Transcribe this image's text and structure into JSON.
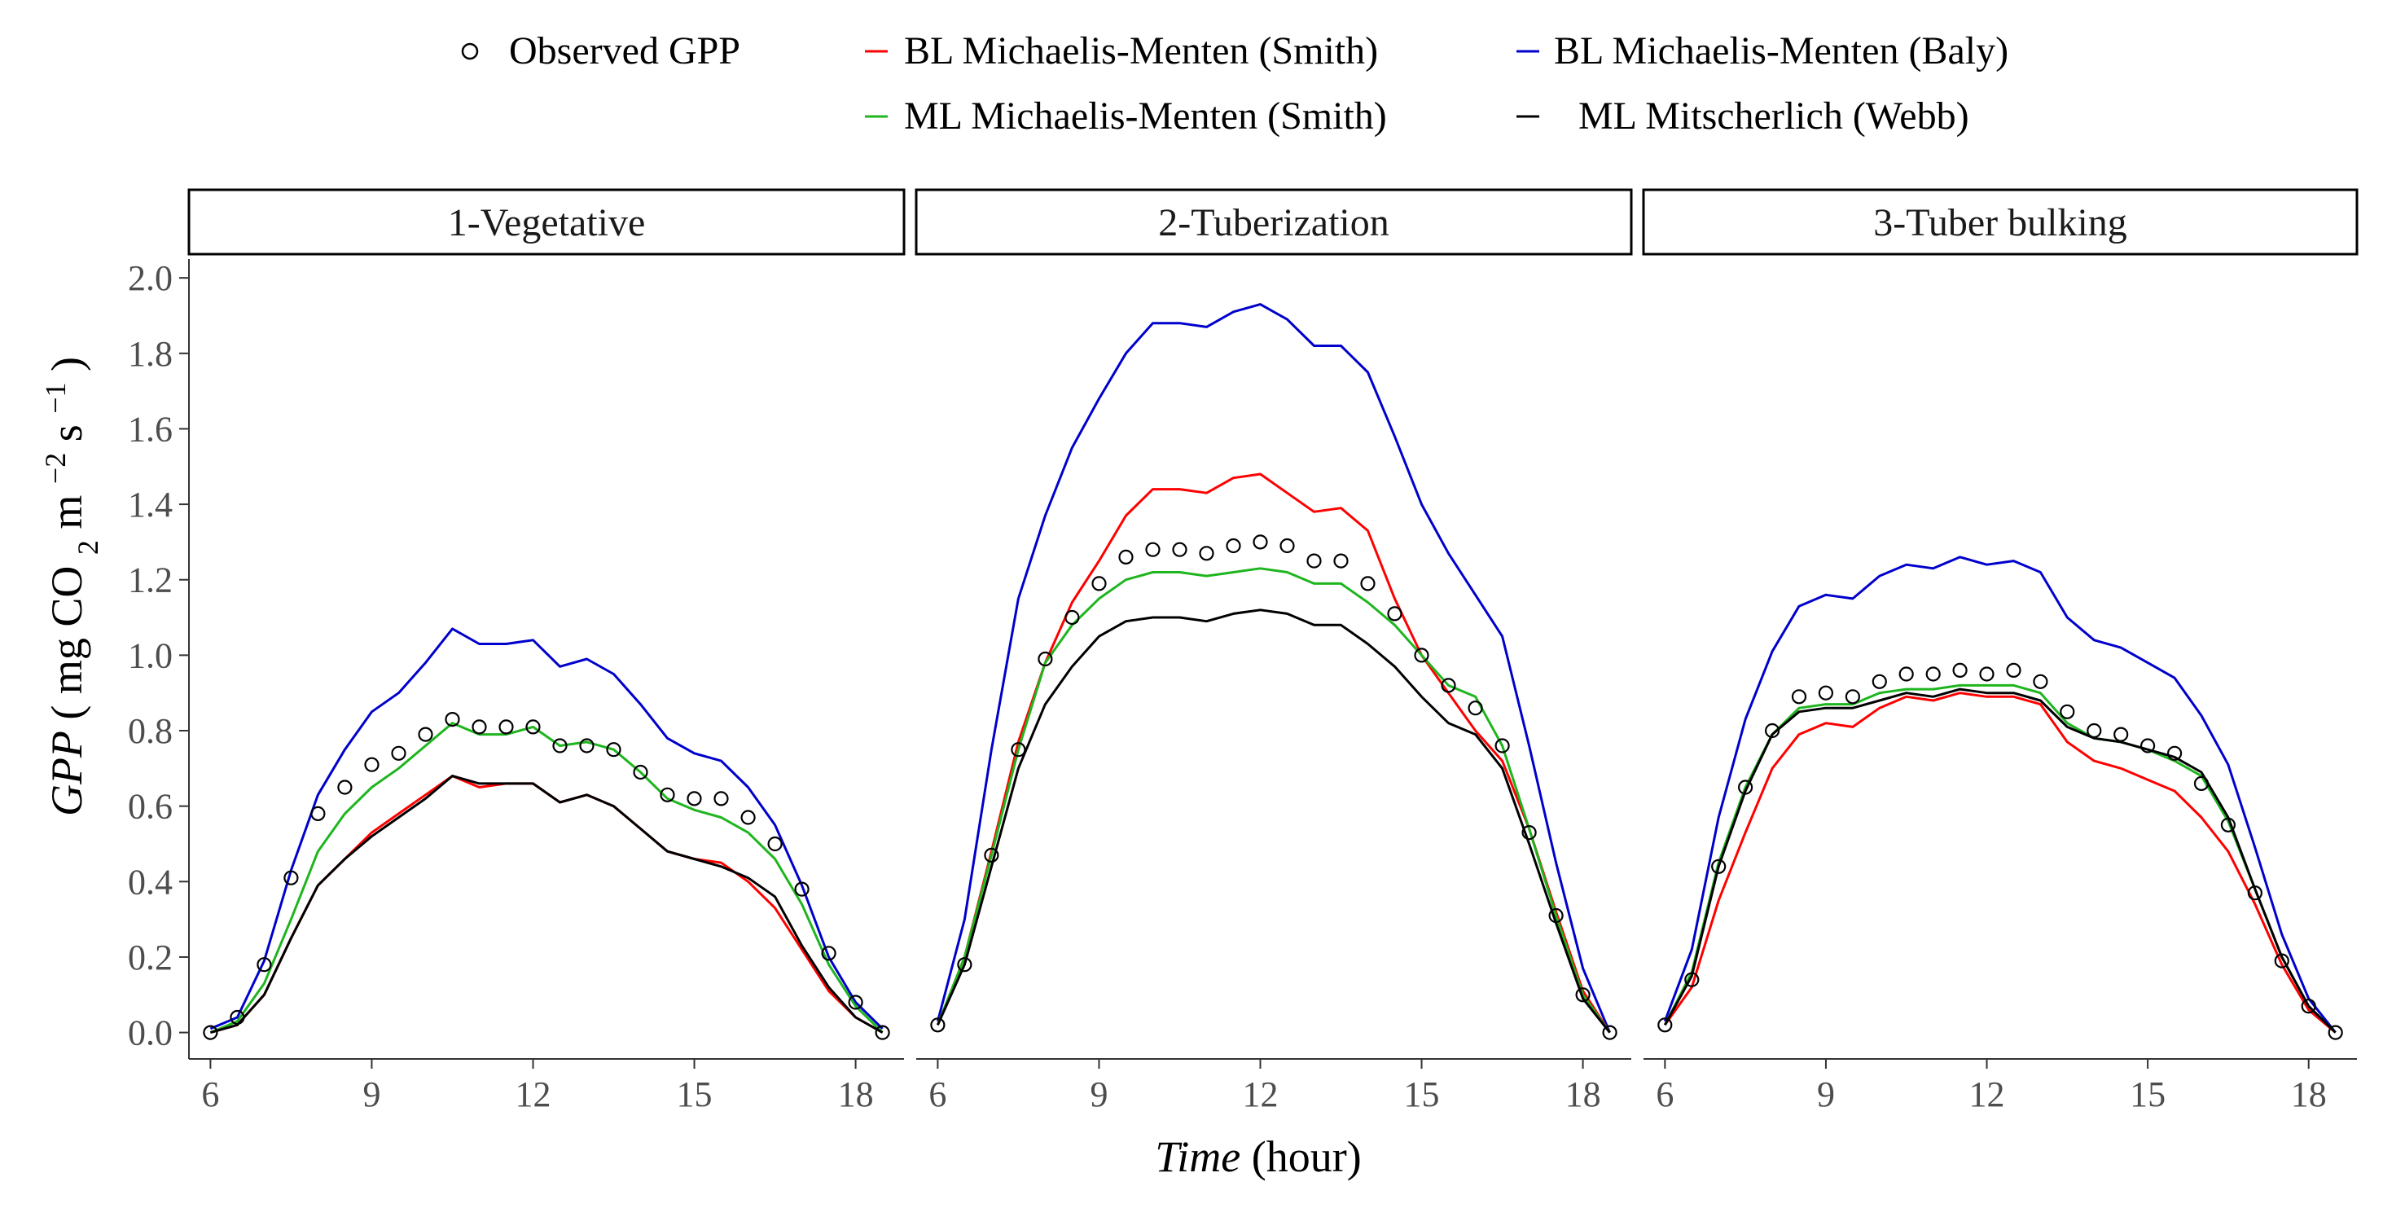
{
  "chart_data": {
    "type": "line",
    "title": "",
    "xlabel_italic": "Time",
    "xlabel_rest": "(hour)",
    "ylabel_italic": "GPP",
    "ylabel_parts": {
      "open": "( mg CO",
      "sub2": "2",
      "m": " m",
      "sup_m": "−2",
      "s": " s",
      "sup_s": "−1",
      "close": " )"
    },
    "xlim": [
      5.6,
      18.9
    ],
    "ylim": [
      -0.07,
      2.05
    ],
    "x_ticks": [
      6,
      9,
      12,
      15,
      18
    ],
    "y_ticks": [
      0.0,
      0.2,
      0.4,
      0.6,
      0.8,
      1.0,
      1.2,
      1.4,
      1.6,
      1.8,
      2.0
    ],
    "y_tick_labels": [
      "0.0",
      "0.2",
      "0.4",
      "0.6",
      "0.8",
      "1.0",
      "1.2",
      "1.4",
      "1.6",
      "1.8",
      "2.0"
    ],
    "legend": {
      "position": "top",
      "entries": [
        {
          "key": "obs",
          "label": "Observed GPP",
          "color": "#000000",
          "kind": "point"
        },
        {
          "key": "bl_smith",
          "label": "BL Michaelis-Menten (Smith)",
          "color": "#ff0000",
          "kind": "line"
        },
        {
          "key": "bl_baly",
          "label": "BL Michaelis-Menten (Baly)",
          "color": "#0000cc",
          "kind": "line"
        },
        {
          "key": "ml_smith",
          "label": "ML Michaelis-Menten (Smith)",
          "color": "#1fb51f",
          "kind": "line"
        },
        {
          "key": "ml_webb",
          "label": "ML Mitscherlich (Webb)",
          "color": "#000000",
          "kind": "line"
        }
      ]
    },
    "x": [
      6,
      6.5,
      7,
      7.5,
      8,
      8.5,
      9,
      9.5,
      10,
      10.5,
      11,
      11.5,
      12,
      12.5,
      13,
      13.5,
      14,
      14.5,
      15,
      15.5,
      16,
      16.5,
      17,
      17.5,
      18,
      18.5
    ],
    "panels": [
      {
        "title": "1-Vegetative",
        "series": [
          {
            "key": "obs",
            "name": "Observed GPP",
            "values": [
              0.0,
              0.04,
              0.18,
              0.41,
              0.58,
              0.65,
              0.71,
              0.74,
              0.79,
              0.83,
              0.81,
              0.81,
              0.81,
              0.76,
              0.76,
              0.75,
              0.69,
              0.63,
              0.62,
              0.62,
              0.57,
              0.5,
              0.38,
              0.21,
              0.08,
              0.0
            ]
          },
          {
            "key": "bl_smith",
            "name": "BL Michaelis-Menten (Smith)",
            "values": [
              0.0,
              0.02,
              0.1,
              0.25,
              0.39,
              0.46,
              0.53,
              0.58,
              0.63,
              0.68,
              0.65,
              0.66,
              0.66,
              0.61,
              0.63,
              0.6,
              0.54,
              0.48,
              0.46,
              0.45,
              0.4,
              0.33,
              0.22,
              0.11,
              0.04,
              0.0
            ]
          },
          {
            "key": "bl_baly",
            "name": "BL Michaelis-Menten (Baly)",
            "values": [
              0.01,
              0.04,
              0.19,
              0.43,
              0.63,
              0.75,
              0.85,
              0.9,
              0.98,
              1.07,
              1.03,
              1.03,
              1.04,
              0.97,
              0.99,
              0.95,
              0.87,
              0.78,
              0.74,
              0.72,
              0.65,
              0.55,
              0.39,
              0.2,
              0.08,
              0.01
            ]
          },
          {
            "key": "ml_smith",
            "name": "ML Michaelis-Menten (Smith)",
            "values": [
              0.0,
              0.03,
              0.13,
              0.3,
              0.48,
              0.58,
              0.65,
              0.7,
              0.76,
              0.82,
              0.79,
              0.79,
              0.81,
              0.76,
              0.77,
              0.75,
              0.69,
              0.62,
              0.59,
              0.57,
              0.53,
              0.46,
              0.34,
              0.18,
              0.07,
              0.0
            ]
          },
          {
            "key": "ml_webb",
            "name": "ML Mitscherlich (Webb)",
            "values": [
              0.0,
              0.02,
              0.1,
              0.25,
              0.39,
              0.46,
              0.52,
              0.57,
              0.62,
              0.68,
              0.66,
              0.66,
              0.66,
              0.61,
              0.63,
              0.6,
              0.54,
              0.48,
              0.46,
              0.44,
              0.41,
              0.36,
              0.23,
              0.12,
              0.04,
              0.0
            ]
          }
        ]
      },
      {
        "title": "2-Tuberization",
        "series": [
          {
            "key": "obs",
            "name": "Observed GPP",
            "values": [
              0.02,
              0.18,
              0.47,
              0.75,
              0.99,
              1.1,
              1.19,
              1.26,
              1.28,
              1.28,
              1.27,
              1.29,
              1.3,
              1.29,
              1.25,
              1.25,
              1.19,
              1.11,
              1.0,
              0.92,
              0.86,
              0.76,
              0.53,
              0.31,
              0.1,
              0.0
            ]
          },
          {
            "key": "bl_smith",
            "name": "BL Michaelis-Menten (Smith)",
            "values": [
              0.02,
              0.2,
              0.48,
              0.77,
              0.98,
              1.14,
              1.25,
              1.37,
              1.44,
              1.44,
              1.43,
              1.47,
              1.48,
              1.43,
              1.38,
              1.39,
              1.33,
              1.15,
              1.0,
              0.9,
              0.8,
              0.72,
              0.54,
              0.32,
              0.11,
              0.0
            ]
          },
          {
            "key": "bl_baly",
            "name": "BL Michaelis-Menten (Baly)",
            "values": [
              0.03,
              0.3,
              0.75,
              1.15,
              1.37,
              1.55,
              1.68,
              1.8,
              1.88,
              1.88,
              1.87,
              1.91,
              1.93,
              1.89,
              1.82,
              1.82,
              1.75,
              1.58,
              1.4,
              1.27,
              1.16,
              1.05,
              0.76,
              0.45,
              0.17,
              0.0
            ]
          },
          {
            "key": "ml_smith",
            "name": "ML Michaelis-Menten (Smith)",
            "values": [
              0.02,
              0.2,
              0.47,
              0.75,
              0.98,
              1.08,
              1.15,
              1.2,
              1.22,
              1.22,
              1.21,
              1.22,
              1.23,
              1.22,
              1.19,
              1.19,
              1.14,
              1.08,
              1.0,
              0.92,
              0.89,
              0.76,
              0.54,
              0.31,
              0.1,
              0.0
            ]
          },
          {
            "key": "ml_webb",
            "name": "ML Mitscherlich (Webb)",
            "values": [
              0.02,
              0.18,
              0.44,
              0.7,
              0.87,
              0.97,
              1.05,
              1.09,
              1.1,
              1.1,
              1.09,
              1.11,
              1.12,
              1.11,
              1.08,
              1.08,
              1.03,
              0.97,
              0.89,
              0.82,
              0.79,
              0.7,
              0.5,
              0.29,
              0.09,
              0.0
            ]
          }
        ]
      },
      {
        "title": "3-Tuber bulking",
        "series": [
          {
            "key": "obs",
            "name": "Observed GPP",
            "values": [
              0.02,
              0.14,
              0.44,
              0.65,
              0.8,
              0.89,
              0.9,
              0.89,
              0.93,
              0.95,
              0.95,
              0.96,
              0.95,
              0.96,
              0.93,
              0.85,
              0.8,
              0.79,
              0.76,
              0.74,
              0.66,
              0.55,
              0.37,
              0.19,
              0.07,
              0.0
            ]
          },
          {
            "key": "bl_smith",
            "name": "BL Michaelis-Menten (Smith)",
            "values": [
              0.02,
              0.12,
              0.35,
              0.53,
              0.7,
              0.79,
              0.82,
              0.81,
              0.86,
              0.89,
              0.88,
              0.9,
              0.89,
              0.89,
              0.87,
              0.77,
              0.72,
              0.7,
              0.67,
              0.64,
              0.57,
              0.48,
              0.34,
              0.18,
              0.06,
              0.0
            ]
          },
          {
            "key": "bl_baly",
            "name": "BL Michaelis-Menten (Baly)",
            "values": [
              0.03,
              0.22,
              0.57,
              0.83,
              1.01,
              1.13,
              1.16,
              1.15,
              1.21,
              1.24,
              1.23,
              1.26,
              1.24,
              1.25,
              1.22,
              1.1,
              1.04,
              1.02,
              0.98,
              0.94,
              0.84,
              0.71,
              0.49,
              0.26,
              0.09,
              0.0
            ]
          },
          {
            "key": "ml_smith",
            "name": "ML Michaelis-Menten (Smith)",
            "values": [
              0.02,
              0.16,
              0.45,
              0.65,
              0.79,
              0.86,
              0.87,
              0.87,
              0.9,
              0.91,
              0.91,
              0.92,
              0.92,
              0.92,
              0.9,
              0.82,
              0.78,
              0.77,
              0.75,
              0.72,
              0.68,
              0.56,
              0.38,
              0.2,
              0.07,
              0.0
            ]
          },
          {
            "key": "ml_webb",
            "name": "ML Mitscherlich (Webb)",
            "values": [
              0.02,
              0.15,
              0.44,
              0.64,
              0.79,
              0.85,
              0.86,
              0.86,
              0.88,
              0.9,
              0.89,
              0.91,
              0.9,
              0.9,
              0.88,
              0.81,
              0.78,
              0.77,
              0.75,
              0.73,
              0.69,
              0.57,
              0.38,
              0.2,
              0.07,
              0.0
            ]
          }
        ]
      }
    ]
  }
}
